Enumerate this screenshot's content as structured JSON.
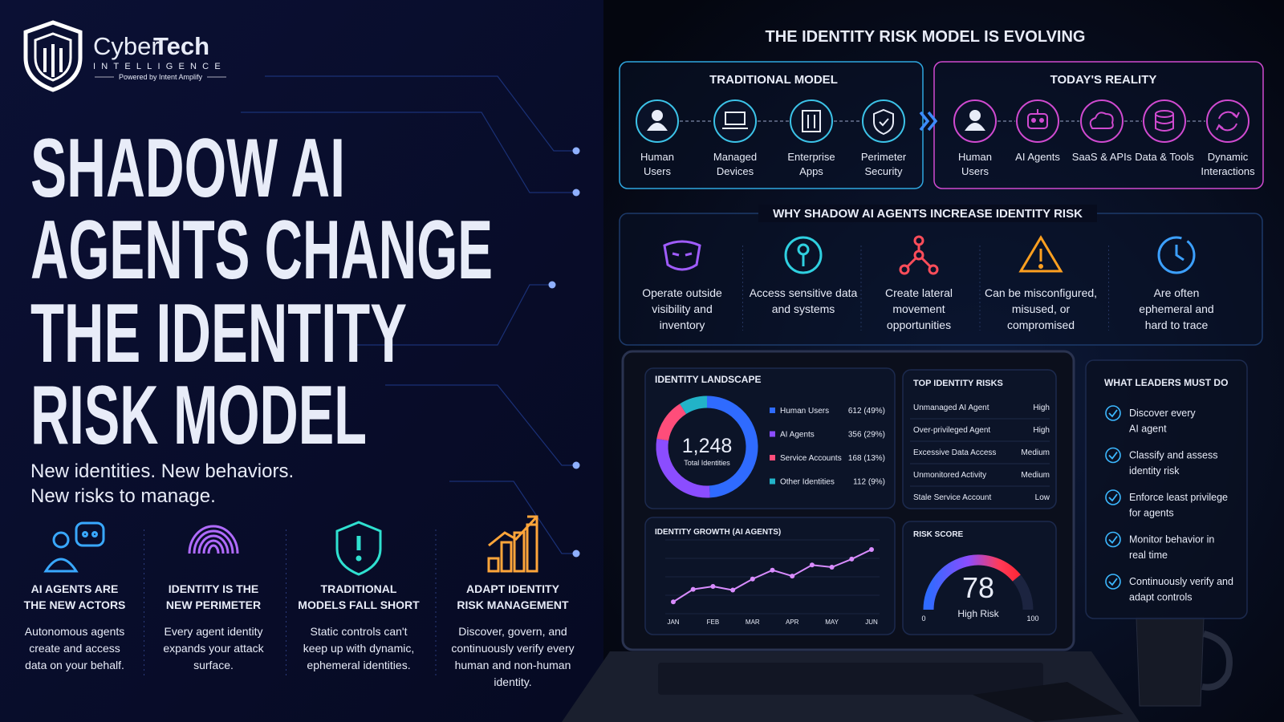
{
  "brand": {
    "name_a": "Cyber",
    "name_b": "Tech",
    "tagline": "INTELLIGENCE",
    "powered": "Powered by Intent Amplify"
  },
  "headline": {
    "lines": [
      "SHADOW AI",
      "AGENTS CHANGE",
      "THE IDENTITY",
      "RISK MODEL"
    ]
  },
  "subtitle": [
    "New identities. New behaviors.",
    "New risks to manage."
  ],
  "pillars": [
    {
      "title": [
        "AI AGENTS ARE",
        "THE NEW ACTORS"
      ],
      "text": [
        "Autonomous agents",
        "create and access",
        "data on your behalf."
      ]
    },
    {
      "title": [
        "IDENTITY IS THE",
        "NEW PERIMETER"
      ],
      "text": [
        "Every agent identity",
        "expands your attack",
        "surface."
      ]
    },
    {
      "title": [
        "TRADITIONAL",
        "MODELS FALL SHORT"
      ],
      "text": [
        "Static controls can't",
        "keep up with dynamic,",
        "ephemeral identities."
      ]
    },
    {
      "title": [
        "ADAPT IDENTITY",
        "RISK MANAGEMENT"
      ],
      "text": [
        "Discover, govern, and",
        "continuously verify every",
        "human and non-human",
        "identity."
      ]
    }
  ],
  "model": {
    "title": "THE IDENTITY RISK MODEL IS EVOLVING",
    "traditional": {
      "title": "TRADITIONAL MODEL",
      "items": [
        [
          "Human",
          "Users"
        ],
        [
          "Managed",
          "Devices"
        ],
        [
          "Enterprise",
          "Apps"
        ],
        [
          "Perimeter",
          "Security"
        ]
      ]
    },
    "today": {
      "title": "TODAY'S REALITY",
      "items": [
        [
          "Human",
          "Users"
        ],
        [
          "AI Agents"
        ],
        [
          "SaaS & APIs"
        ],
        [
          "Data & Tools"
        ],
        [
          "Dynamic",
          "Interactions"
        ]
      ]
    }
  },
  "why": {
    "title": "WHY SHADOW AI AGENTS INCREASE IDENTITY RISK",
    "items": [
      [
        "Operate outside",
        "visibility and",
        "inventory"
      ],
      [
        "Access sensitive data",
        "and systems"
      ],
      [
        "Create lateral",
        "movement",
        "opportunities"
      ],
      [
        "Can be misconfigured,",
        "misused, or",
        "compromised"
      ],
      [
        "Are often",
        "ephemeral and",
        "hard to trace"
      ]
    ]
  },
  "landscape": {
    "type": "pie",
    "title": "IDENTITY LANDSCAPE",
    "total": "1,248",
    "total_caption": "Total Identities",
    "categories": [
      "Human Users",
      "AI Agents",
      "Service Accounts",
      "Other Identities"
    ],
    "values": [
      612,
      356,
      168,
      112
    ],
    "value_labels": [
      "612 (49%)",
      "356 (29%)",
      "168 (13%)",
      "112 (9%)"
    ],
    "colors": [
      "#2f6bff",
      "#8b4dff",
      "#ff4d7a",
      "#22b3c8"
    ]
  },
  "risks": {
    "title": "TOP IDENTITY RISKS",
    "rows": [
      {
        "name": "Unmanaged AI Agent",
        "level": "High",
        "color": "#ff3b4a"
      },
      {
        "name": "Over-privileged Agent",
        "level": "High",
        "color": "#ff3b4a"
      },
      {
        "name": "Excessive Data Access",
        "level": "Medium",
        "color": "#ff9a2a"
      },
      {
        "name": "Unmonitored Activity",
        "level": "Medium",
        "color": "#ff9a2a"
      },
      {
        "name": "Stale Service Account",
        "level": "Low",
        "color": "#3ddc84"
      }
    ]
  },
  "growth": {
    "type": "line",
    "title": "IDENTITY GROWTH (AI AGENTS)",
    "categories": [
      "JAN",
      null,
      "FEB",
      null,
      "MAR",
      null,
      "APR",
      null,
      "MAY",
      null,
      "JUN"
    ],
    "values": [
      16,
      33,
      37,
      32,
      47,
      59,
      51,
      66,
      63,
      74,
      87
    ],
    "ylim": [
      0,
      100
    ],
    "color": "#d98cff"
  },
  "risk_score": {
    "type": "gauge",
    "title": "RISK SCORE",
    "value": 78,
    "status": "High Risk",
    "ylim": [
      0,
      100
    ],
    "ticks": [
      0,
      100
    ]
  },
  "leaders": {
    "title": "WHAT LEADERS MUST DO",
    "items": [
      [
        "Discover every",
        "AI agent"
      ],
      [
        "Classify and assess",
        "identity risk"
      ],
      [
        "Enforce least privilege",
        "for agents"
      ],
      [
        "Monitor behavior in",
        "real time"
      ],
      [
        "Continuously verify and",
        "adapt controls"
      ]
    ]
  }
}
